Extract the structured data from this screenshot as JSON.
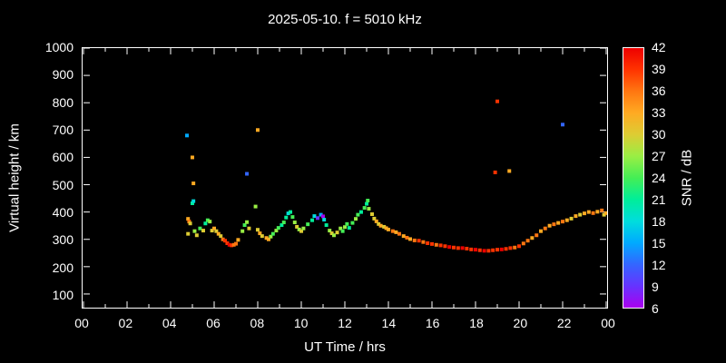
{
  "chart_data": {
    "type": "scatter",
    "title": "2025-05-10. f = 5010 kHz",
    "xlabel": "UT Time / hrs",
    "ylabel": "Virtual height / km",
    "colorbar_label": "SNR / dB",
    "grid": false,
    "background": "#000000",
    "axis_color": "#ffffff",
    "xlim": [
      0,
      24
    ],
    "ylim": [
      50,
      1000
    ],
    "x_tick_values": [
      0,
      2,
      4,
      6,
      8,
      10,
      12,
      14,
      16,
      18,
      20,
      22,
      24
    ],
    "x_tick_labels": [
      "00",
      "02",
      "04",
      "06",
      "08",
      "10",
      "12",
      "14",
      "16",
      "18",
      "20",
      "22",
      "00"
    ],
    "x_minor_tick_values": [
      1,
      3,
      5,
      7,
      9,
      11,
      13,
      15,
      17,
      19,
      21,
      23
    ],
    "y_tick_values": [
      100,
      200,
      300,
      400,
      500,
      600,
      700,
      800,
      900,
      1000
    ],
    "y_tick_labels": [
      "100",
      "200",
      "300",
      "400",
      "500",
      "600",
      "700",
      "800",
      "900",
      "1000"
    ],
    "colorbar_range": [
      6,
      42
    ],
    "colorbar_ticks": [
      6,
      9,
      12,
      15,
      18,
      21,
      24,
      27,
      30,
      33,
      36,
      39,
      42
    ],
    "colormap": [
      {
        "v": 6,
        "c": "#aa00ee"
      },
      {
        "v": 9,
        "c": "#6633ff"
      },
      {
        "v": 12,
        "c": "#3366ff"
      },
      {
        "v": 15,
        "c": "#00aaff"
      },
      {
        "v": 18,
        "c": "#00dddd"
      },
      {
        "v": 21,
        "c": "#00ee99"
      },
      {
        "v": 24,
        "c": "#44ee55"
      },
      {
        "v": 27,
        "c": "#99ee44"
      },
      {
        "v": 30,
        "c": "#ddcc33"
      },
      {
        "v": 33,
        "c": "#ffaa22"
      },
      {
        "v": 36,
        "c": "#ff7711"
      },
      {
        "v": 39,
        "c": "#ff3300"
      },
      {
        "v": 42,
        "c": "#ee0000"
      }
    ],
    "points_format": [
      "ut_hours",
      "virtual_height_km",
      "snr_db"
    ],
    "points": [
      [
        4.75,
        680,
        15
      ],
      [
        4.8,
        320,
        30
      ],
      [
        4.8,
        375,
        33
      ],
      [
        4.85,
        365,
        36
      ],
      [
        4.9,
        358,
        30
      ],
      [
        5.0,
        600,
        33
      ],
      [
        5.05,
        505,
        33
      ],
      [
        5.0,
        432,
        21
      ],
      [
        5.05,
        440,
        18
      ],
      [
        5.1,
        330,
        27
      ],
      [
        5.2,
        315,
        30
      ],
      [
        5.35,
        340,
        24
      ],
      [
        5.5,
        332,
        30
      ],
      [
        5.6,
        358,
        21
      ],
      [
        5.7,
        370,
        24
      ],
      [
        5.8,
        365,
        27
      ],
      [
        5.9,
        332,
        30
      ],
      [
        6.0,
        340,
        33
      ],
      [
        6.1,
        330,
        30
      ],
      [
        6.2,
        320,
        33
      ],
      [
        6.3,
        312,
        30
      ],
      [
        6.4,
        300,
        36
      ],
      [
        6.5,
        295,
        39
      ],
      [
        6.6,
        286,
        39
      ],
      [
        6.7,
        280,
        42
      ],
      [
        6.8,
        278,
        39
      ],
      [
        6.9,
        280,
        36
      ],
      [
        7.0,
        284,
        36
      ],
      [
        7.1,
        298,
        33
      ],
      [
        7.3,
        330,
        27
      ],
      [
        7.4,
        352,
        24
      ],
      [
        7.5,
        540,
        12
      ],
      [
        7.5,
        363,
        27
      ],
      [
        7.6,
        340,
        30
      ],
      [
        7.9,
        420,
        27
      ],
      [
        8.0,
        700,
        33
      ],
      [
        8.0,
        335,
        30
      ],
      [
        8.1,
        322,
        33
      ],
      [
        8.2,
        312,
        30
      ],
      [
        8.4,
        305,
        33
      ],
      [
        8.5,
        300,
        33
      ],
      [
        8.6,
        310,
        27
      ],
      [
        8.7,
        320,
        24
      ],
      [
        8.85,
        332,
        27
      ],
      [
        8.95,
        342,
        24
      ],
      [
        9.1,
        352,
        21
      ],
      [
        9.2,
        362,
        24
      ],
      [
        9.3,
        380,
        21
      ],
      [
        9.4,
        395,
        18
      ],
      [
        9.5,
        400,
        21
      ],
      [
        9.6,
        382,
        24
      ],
      [
        9.7,
        362,
        27
      ],
      [
        9.8,
        346,
        30
      ],
      [
        9.9,
        336,
        27
      ],
      [
        10.0,
        330,
        30
      ],
      [
        10.1,
        340,
        27
      ],
      [
        10.3,
        355,
        24
      ],
      [
        10.5,
        370,
        21
      ],
      [
        10.6,
        385,
        18
      ],
      [
        10.75,
        378,
        9
      ],
      [
        10.9,
        390,
        15
      ],
      [
        11.0,
        384,
        6
      ],
      [
        11.05,
        372,
        18
      ],
      [
        11.15,
        352,
        21
      ],
      [
        11.3,
        332,
        27
      ],
      [
        11.4,
        322,
        30
      ],
      [
        11.5,
        315,
        27
      ],
      [
        11.65,
        325,
        30
      ],
      [
        11.8,
        340,
        27
      ],
      [
        11.9,
        330,
        24
      ],
      [
        12.0,
        345,
        27
      ],
      [
        12.1,
        356,
        24
      ],
      [
        12.2,
        342,
        21
      ],
      [
        12.35,
        360,
        24
      ],
      [
        12.5,
        375,
        27
      ],
      [
        12.6,
        390,
        24
      ],
      [
        12.75,
        400,
        21
      ],
      [
        12.9,
        415,
        24
      ],
      [
        13.0,
        430,
        21
      ],
      [
        13.05,
        442,
        24
      ],
      [
        13.1,
        412,
        27
      ],
      [
        13.25,
        392,
        30
      ],
      [
        13.35,
        376,
        30
      ],
      [
        13.45,
        366,
        33
      ],
      [
        13.55,
        356,
        30
      ],
      [
        13.65,
        350,
        33
      ],
      [
        13.8,
        346,
        30
      ],
      [
        13.9,
        341,
        33
      ],
      [
        14.0,
        336,
        33
      ],
      [
        14.2,
        330,
        36
      ],
      [
        14.35,
        326,
        33
      ],
      [
        14.5,
        320,
        36
      ],
      [
        14.7,
        312,
        33
      ],
      [
        14.85,
        306,
        36
      ],
      [
        15.0,
        301,
        33
      ],
      [
        15.2,
        296,
        36
      ],
      [
        15.4,
        295,
        39
      ],
      [
        15.6,
        290,
        36
      ],
      [
        15.8,
        286,
        39
      ],
      [
        16.0,
        283,
        39
      ],
      [
        16.2,
        280,
        36
      ],
      [
        16.4,
        278,
        39
      ],
      [
        16.6,
        275,
        39
      ],
      [
        16.8,
        272,
        42
      ],
      [
        17.0,
        270,
        39
      ],
      [
        17.2,
        268,
        39
      ],
      [
        17.4,
        268,
        42
      ],
      [
        17.6,
        266,
        39
      ],
      [
        17.8,
        263,
        39
      ],
      [
        18.0,
        262,
        42
      ],
      [
        18.2,
        260,
        39
      ],
      [
        18.4,
        258,
        42
      ],
      [
        18.6,
        258,
        39
      ],
      [
        18.8,
        260,
        39
      ],
      [
        18.9,
        545,
        39
      ],
      [
        19.0,
        805,
        39
      ],
      [
        19.0,
        262,
        39
      ],
      [
        19.2,
        263,
        42
      ],
      [
        19.4,
        265,
        39
      ],
      [
        19.55,
        550,
        33
      ],
      [
        19.6,
        268,
        39
      ],
      [
        19.8,
        270,
        36
      ],
      [
        20.0,
        275,
        39
      ],
      [
        20.2,
        285,
        36
      ],
      [
        20.4,
        295,
        36
      ],
      [
        20.6,
        305,
        33
      ],
      [
        20.8,
        315,
        36
      ],
      [
        21.0,
        330,
        33
      ],
      [
        21.2,
        340,
        36
      ],
      [
        21.4,
        350,
        33
      ],
      [
        21.6,
        355,
        36
      ],
      [
        21.8,
        360,
        33
      ],
      [
        22.0,
        720,
        12
      ],
      [
        22.0,
        365,
        36
      ],
      [
        22.2,
        370,
        33
      ],
      [
        22.4,
        376,
        30
      ],
      [
        22.6,
        385,
        33
      ],
      [
        22.8,
        390,
        30
      ],
      [
        23.0,
        395,
        33
      ],
      [
        23.2,
        400,
        33
      ],
      [
        23.4,
        396,
        36
      ],
      [
        23.6,
        401,
        33
      ],
      [
        23.8,
        406,
        36
      ],
      [
        23.9,
        390,
        30
      ],
      [
        24.0,
        396,
        33
      ]
    ]
  }
}
